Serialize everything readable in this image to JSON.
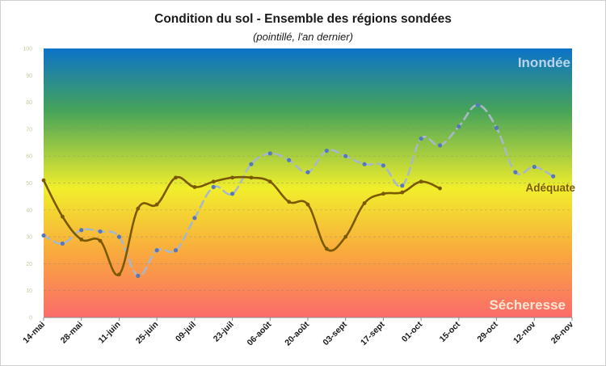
{
  "chart_data": {
    "type": "line",
    "title": "Condition du sol - Ensemble des régions sondées",
    "subtitle": "(pointillé, l'an dernier)",
    "categories": [
      "14-mai",
      "28-mai",
      "11-juin",
      "25-juin",
      "09-juil",
      "23-juil",
      "06-août",
      "20-août",
      "03-sept",
      "17-sept",
      "01-oct",
      "15-oct",
      "29-oct",
      "12-nov",
      "26-nov"
    ],
    "yticks": [
      "0",
      "10",
      "20",
      "30",
      "40",
      "50",
      "60",
      "70",
      "80",
      "90",
      "100"
    ],
    "ylim": [
      0,
      100
    ],
    "zones": {
      "top": "Inondée",
      "middle": "Adéquate",
      "bottom": "Sécheresse"
    },
    "zone_colors": {
      "top": "#b9d3e8",
      "middle": "#7a5a00",
      "bottom": "#fde7d3"
    },
    "gradient": [
      "#0c73c9",
      "#45a35a",
      "#f1ee2c",
      "#f9a93d",
      "#fb6b6b"
    ],
    "series": [
      {
        "style": "solid",
        "color": "#7a5a00",
        "x": [
          0,
          0.5,
          1,
          1.5,
          2,
          2.5,
          3,
          3.5,
          4,
          4.5,
          5,
          5.5,
          6,
          6.5,
          7,
          7.5,
          8,
          8.5,
          9,
          9.5,
          10,
          10.5
        ],
        "values": [
          51,
          37.5,
          29,
          28.5,
          16,
          40.5,
          42,
          52,
          48.5,
          50.5,
          52,
          52,
          50.5,
          43,
          42,
          25.5,
          30,
          42.5,
          46,
          46.5,
          50.5,
          48
        ]
      },
      {
        "style": "dashed",
        "color": "#a8b8c8",
        "marker_color": "#5577bb",
        "x": [
          0,
          0.5,
          1,
          1.5,
          2,
          2.5,
          3,
          3.5,
          4,
          4.5,
          5,
          5.5,
          6,
          6.5,
          7,
          7.5,
          8,
          8.5,
          9,
          9.5,
          10,
          10.5,
          11,
          11.5,
          12,
          12.5,
          13,
          13.5
        ],
        "values": [
          30.5,
          27.5,
          32.5,
          32,
          30,
          15.5,
          25,
          25,
          37,
          48.5,
          46,
          57,
          61,
          58.5,
          54,
          62,
          60,
          57,
          56.5,
          49,
          66.5,
          64,
          71,
          79,
          70.5,
          54,
          56,
          52.5
        ]
      }
    ]
  }
}
